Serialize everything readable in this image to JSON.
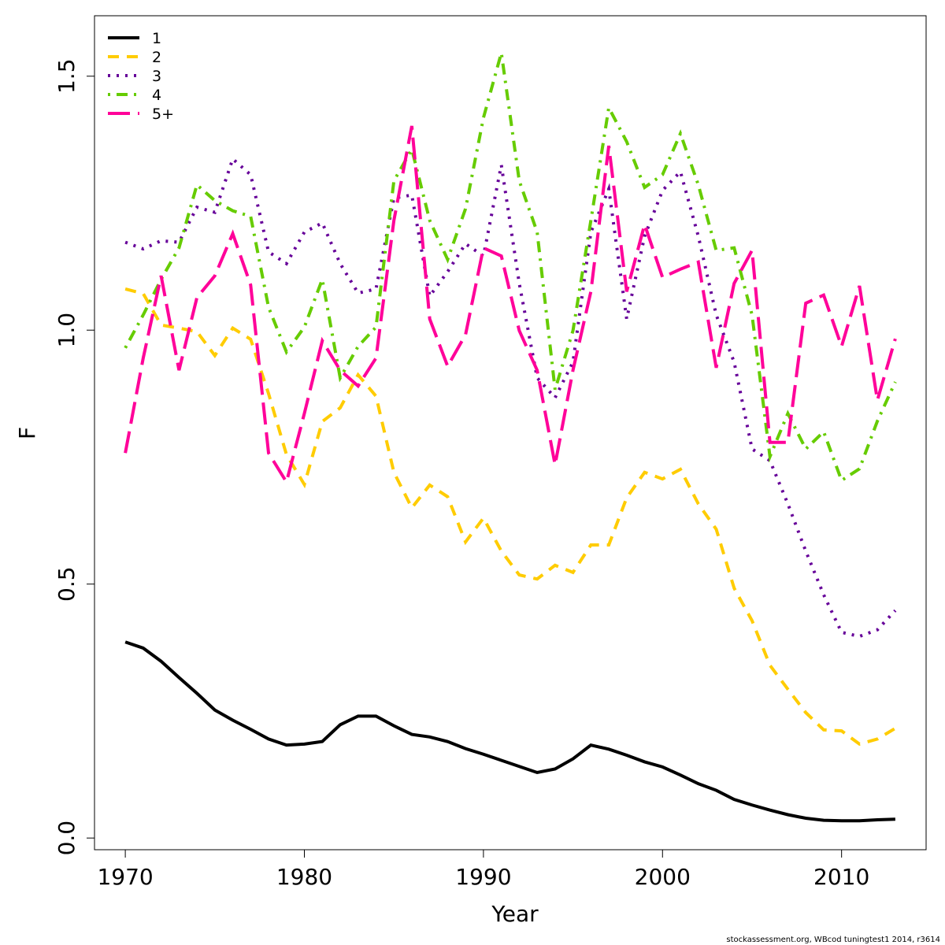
{
  "chart_data": {
    "type": "line",
    "xlabel": "Year",
    "ylabel": "F",
    "x": [
      1970,
      1971,
      1972,
      1973,
      1974,
      1975,
      1976,
      1977,
      1978,
      1979,
      1980,
      1981,
      1982,
      1983,
      1984,
      1985,
      1986,
      1987,
      1988,
      1989,
      1990,
      1991,
      1992,
      1993,
      1994,
      1995,
      1996,
      1997,
      1998,
      1999,
      2000,
      2001,
      2002,
      2003,
      2004,
      2005,
      2006,
      2007,
      2008,
      2009,
      2010,
      2011,
      2012,
      2013
    ],
    "series": [
      {
        "name": "1",
        "color": "#000000",
        "linestyle": "solid",
        "values": [
          0.386,
          0.374,
          0.348,
          0.316,
          0.285,
          0.252,
          0.232,
          0.214,
          0.195,
          0.183,
          0.185,
          0.19,
          0.223,
          0.24,
          0.24,
          0.221,
          0.204,
          0.199,
          0.19,
          0.176,
          0.165,
          0.153,
          0.141,
          0.129,
          0.136,
          0.156,
          0.183,
          0.175,
          0.163,
          0.15,
          0.14,
          0.124,
          0.107,
          0.094,
          0.076,
          0.065,
          0.055,
          0.046,
          0.039,
          0.035,
          0.034,
          0.034,
          0.036,
          0.037
        ]
      },
      {
        "name": "2",
        "color": "#ffcc00",
        "linestyle": "dashed",
        "values": [
          1.081,
          1.072,
          1.01,
          1.004,
          0.997,
          0.95,
          1.004,
          0.982,
          0.875,
          0.755,
          0.696,
          0.82,
          0.847,
          0.912,
          0.87,
          0.72,
          0.65,
          0.695,
          0.672,
          0.583,
          0.63,
          0.565,
          0.518,
          0.51,
          0.537,
          0.523,
          0.577,
          0.577,
          0.67,
          0.72,
          0.707,
          0.726,
          0.658,
          0.608,
          0.492,
          0.428,
          0.34,
          0.293,
          0.247,
          0.213,
          0.211,
          0.185,
          0.195,
          0.216
        ]
      },
      {
        "name": "3",
        "color": "#660099",
        "linestyle": "dotted",
        "values": [
          1.173,
          1.16,
          1.176,
          1.173,
          1.242,
          1.232,
          1.337,
          1.306,
          1.154,
          1.131,
          1.193,
          1.211,
          1.131,
          1.073,
          1.081,
          1.26,
          1.266,
          1.067,
          1.115,
          1.17,
          1.146,
          1.325,
          1.092,
          0.906,
          0.867,
          0.937,
          1.193,
          1.278,
          1.022,
          1.185,
          1.275,
          1.312,
          1.185,
          1.03,
          0.937,
          0.766,
          0.743,
          0.658,
          0.565,
          0.479,
          0.405,
          0.397,
          0.41,
          0.448
        ]
      },
      {
        "name": "4",
        "color": "#66cc00",
        "linestyle": "dotdash",
        "values": [
          0.965,
          1.03,
          1.1,
          1.162,
          1.286,
          1.255,
          1.235,
          1.224,
          1.045,
          0.957,
          1.006,
          1.1,
          0.906,
          0.968,
          1.006,
          1.294,
          1.356,
          1.216,
          1.139,
          1.239,
          1.418,
          1.546,
          1.294,
          1.193,
          0.883,
          0.999,
          1.216,
          1.438,
          1.371,
          1.281,
          1.306,
          1.387,
          1.286,
          1.157,
          1.162,
          1.03,
          0.751,
          0.836,
          0.766,
          0.8,
          0.704,
          0.727,
          0.821,
          0.898
        ]
      },
      {
        "name": "5+",
        "color": "#ff0099",
        "linestyle": "longdash",
        "values": [
          0.758,
          0.945,
          1.107,
          0.921,
          1.064,
          1.107,
          1.19,
          1.089,
          0.758,
          0.701,
          0.836,
          0.979,
          0.921,
          0.89,
          0.945,
          1.216,
          1.402,
          1.022,
          0.929,
          0.991,
          1.162,
          1.146,
          0.999,
          0.921,
          0.735,
          0.921,
          1.076,
          1.363,
          1.076,
          1.208,
          1.104,
          1.12,
          1.134,
          0.926,
          1.092,
          1.157,
          0.779,
          0.779,
          1.053,
          1.069,
          0.968,
          1.087,
          0.862,
          0.983
        ]
      }
    ],
    "xlim": [
      1968.28,
      2014.72
    ],
    "xticks": [
      1970,
      1980,
      1990,
      2000,
      2010
    ],
    "ylim": [
      -0.023,
      1.619
    ],
    "yticks": [
      {
        "value": 0,
        "label": "0.0"
      },
      0.5,
      {
        "value": 1,
        "label": "1.0"
      },
      1.5
    ],
    "legend": "topleft",
    "footnote": "stockassessment.org, WBcod tuningtest1 2014, r3614"
  }
}
